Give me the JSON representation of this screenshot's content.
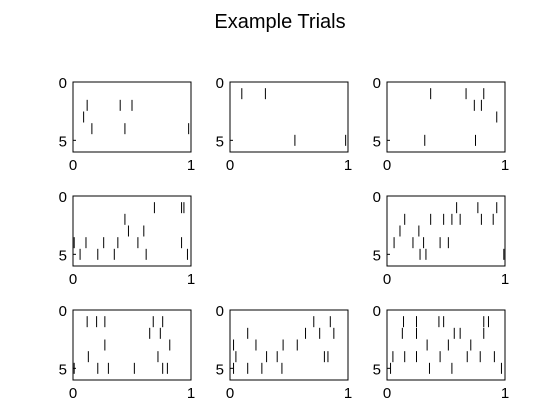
{
  "figure": {
    "title": "Example Trials",
    "background": "#ffffff",
    "axis_color": "#000000",
    "spike_color": "#000000"
  },
  "chart_data": [
    {
      "type": "raster",
      "panel": "row1-col1",
      "xlim": [
        0,
        1
      ],
      "ylim": [
        0,
        6
      ],
      "xticks": [
        "0",
        "1"
      ],
      "yticks": [
        "0",
        "5"
      ],
      "spikes": [
        {
          "x": 0.12,
          "trial": 2
        },
        {
          "x": 0.4,
          "trial": 2
        },
        {
          "x": 0.5,
          "trial": 2
        },
        {
          "x": 0.09,
          "trial": 3
        },
        {
          "x": 0.16,
          "trial": 4
        },
        {
          "x": 0.44,
          "trial": 4
        },
        {
          "x": 0.98,
          "trial": 4
        }
      ]
    },
    {
      "type": "raster",
      "panel": "row1-col2",
      "xlim": [
        0,
        1
      ],
      "ylim": [
        0,
        6
      ],
      "xticks": [
        "0",
        "1"
      ],
      "yticks": [
        "0",
        "5"
      ],
      "spikes": [
        {
          "x": 0.1,
          "trial": 1
        },
        {
          "x": 0.3,
          "trial": 1
        },
        {
          "x": 0.55,
          "trial": 5
        },
        {
          "x": 0.98,
          "trial": 5
        }
      ]
    },
    {
      "type": "raster",
      "panel": "row1-col3",
      "xlim": [
        0,
        1
      ],
      "ylim": [
        0,
        6
      ],
      "xticks": [
        "0",
        "1"
      ],
      "yticks": [
        "0",
        "5"
      ],
      "spikes": [
        {
          "x": 0.37,
          "trial": 1
        },
        {
          "x": 0.67,
          "trial": 1
        },
        {
          "x": 0.82,
          "trial": 1
        },
        {
          "x": 0.74,
          "trial": 2
        },
        {
          "x": 0.8,
          "trial": 2
        },
        {
          "x": 0.93,
          "trial": 3
        },
        {
          "x": 0.32,
          "trial": 5
        },
        {
          "x": 0.75,
          "trial": 5
        }
      ]
    },
    {
      "type": "raster",
      "panel": "row2-col1",
      "xlim": [
        0,
        1
      ],
      "ylim": [
        0,
        6
      ],
      "xticks": [
        "0",
        "1"
      ],
      "yticks": [
        "0",
        "5"
      ],
      "spikes": [
        {
          "x": 0.69,
          "trial": 1
        },
        {
          "x": 0.92,
          "trial": 1
        },
        {
          "x": 0.94,
          "trial": 1
        },
        {
          "x": 0.44,
          "trial": 2
        },
        {
          "x": 0.47,
          "trial": 3
        },
        {
          "x": 0.6,
          "trial": 3
        },
        {
          "x": 0.01,
          "trial": 4
        },
        {
          "x": 0.11,
          "trial": 4
        },
        {
          "x": 0.26,
          "trial": 4
        },
        {
          "x": 0.38,
          "trial": 4
        },
        {
          "x": 0.55,
          "trial": 4
        },
        {
          "x": 0.92,
          "trial": 4
        },
        {
          "x": 0.06,
          "trial": 5
        },
        {
          "x": 0.21,
          "trial": 5
        },
        {
          "x": 0.35,
          "trial": 5
        },
        {
          "x": 0.62,
          "trial": 5
        },
        {
          "x": 0.97,
          "trial": 5
        }
      ]
    },
    {
      "type": "raster",
      "panel": "row2-col3",
      "xlim": [
        0,
        1
      ],
      "ylim": [
        0,
        6
      ],
      "xticks": [
        "0",
        "1"
      ],
      "yticks": [
        "0",
        "5"
      ],
      "spikes": [
        {
          "x": 0.59,
          "trial": 1
        },
        {
          "x": 0.77,
          "trial": 1
        },
        {
          "x": 0.93,
          "trial": 1
        },
        {
          "x": 0.15,
          "trial": 2
        },
        {
          "x": 0.37,
          "trial": 2
        },
        {
          "x": 0.48,
          "trial": 2
        },
        {
          "x": 0.55,
          "trial": 2
        },
        {
          "x": 0.62,
          "trial": 2
        },
        {
          "x": 0.8,
          "trial": 2
        },
        {
          "x": 0.9,
          "trial": 2
        },
        {
          "x": 0.11,
          "trial": 3
        },
        {
          "x": 0.27,
          "trial": 3
        },
        {
          "x": 0.06,
          "trial": 4
        },
        {
          "x": 0.22,
          "trial": 4
        },
        {
          "x": 0.31,
          "trial": 4
        },
        {
          "x": 0.45,
          "trial": 4
        },
        {
          "x": 0.52,
          "trial": 4
        },
        {
          "x": 0.28,
          "trial": 5
        },
        {
          "x": 0.33,
          "trial": 5
        },
        {
          "x": 0.99,
          "trial": 5
        }
      ]
    },
    {
      "type": "raster",
      "panel": "row3-col1",
      "xlim": [
        0,
        1
      ],
      "ylim": [
        0,
        6
      ],
      "xticks": [
        "0",
        "1"
      ],
      "yticks": [
        "0",
        "5"
      ],
      "spikes": [
        {
          "x": 0.12,
          "trial": 1
        },
        {
          "x": 0.2,
          "trial": 1
        },
        {
          "x": 0.27,
          "trial": 1
        },
        {
          "x": 0.68,
          "trial": 1
        },
        {
          "x": 0.76,
          "trial": 1
        },
        {
          "x": 0.65,
          "trial": 2
        },
        {
          "x": 0.74,
          "trial": 2
        },
        {
          "x": 0.27,
          "trial": 3
        },
        {
          "x": 0.82,
          "trial": 3
        },
        {
          "x": 0.13,
          "trial": 4
        },
        {
          "x": 0.72,
          "trial": 4
        },
        {
          "x": 0.01,
          "trial": 5
        },
        {
          "x": 0.21,
          "trial": 5
        },
        {
          "x": 0.3,
          "trial": 5
        },
        {
          "x": 0.52,
          "trial": 5
        },
        {
          "x": 0.76,
          "trial": 5
        },
        {
          "x": 0.8,
          "trial": 5
        }
      ]
    },
    {
      "type": "raster",
      "panel": "row3-col2",
      "xlim": [
        0,
        1
      ],
      "ylim": [
        0,
        6
      ],
      "xticks": [
        "0",
        "1"
      ],
      "yticks": [
        "0",
        "5"
      ],
      "spikes": [
        {
          "x": 0.71,
          "trial": 1
        },
        {
          "x": 0.85,
          "trial": 1
        },
        {
          "x": 0.15,
          "trial": 2
        },
        {
          "x": 0.64,
          "trial": 2
        },
        {
          "x": 0.76,
          "trial": 2
        },
        {
          "x": 0.88,
          "trial": 2
        },
        {
          "x": 0.03,
          "trial": 3
        },
        {
          "x": 0.22,
          "trial": 3
        },
        {
          "x": 0.45,
          "trial": 3
        },
        {
          "x": 0.57,
          "trial": 3
        },
        {
          "x": 0.05,
          "trial": 4
        },
        {
          "x": 0.31,
          "trial": 4
        },
        {
          "x": 0.4,
          "trial": 4
        },
        {
          "x": 0.8,
          "trial": 4
        },
        {
          "x": 0.83,
          "trial": 4
        },
        {
          "x": 0.03,
          "trial": 5
        },
        {
          "x": 0.15,
          "trial": 5
        },
        {
          "x": 0.27,
          "trial": 5
        },
        {
          "x": 0.44,
          "trial": 5
        }
      ]
    },
    {
      "type": "raster",
      "panel": "row3-col3",
      "xlim": [
        0,
        1
      ],
      "ylim": [
        0,
        6
      ],
      "xticks": [
        "0",
        "1"
      ],
      "yticks": [
        "0",
        "5"
      ],
      "spikes": [
        {
          "x": 0.14,
          "trial": 1
        },
        {
          "x": 0.25,
          "trial": 1
        },
        {
          "x": 0.44,
          "trial": 1
        },
        {
          "x": 0.48,
          "trial": 1
        },
        {
          "x": 0.82,
          "trial": 1
        },
        {
          "x": 0.86,
          "trial": 1
        },
        {
          "x": 0.13,
          "trial": 2
        },
        {
          "x": 0.25,
          "trial": 2
        },
        {
          "x": 0.57,
          "trial": 2
        },
        {
          "x": 0.62,
          "trial": 2
        },
        {
          "x": 0.82,
          "trial": 2
        },
        {
          "x": 0.34,
          "trial": 3
        },
        {
          "x": 0.52,
          "trial": 3
        },
        {
          "x": 0.71,
          "trial": 3
        },
        {
          "x": 0.05,
          "trial": 4
        },
        {
          "x": 0.15,
          "trial": 4
        },
        {
          "x": 0.25,
          "trial": 4
        },
        {
          "x": 0.45,
          "trial": 4
        },
        {
          "x": 0.68,
          "trial": 4
        },
        {
          "x": 0.79,
          "trial": 4
        },
        {
          "x": 0.91,
          "trial": 4
        },
        {
          "x": 0.03,
          "trial": 5
        },
        {
          "x": 0.36,
          "trial": 5
        },
        {
          "x": 0.55,
          "trial": 5
        },
        {
          "x": 0.97,
          "trial": 5
        }
      ]
    }
  ]
}
